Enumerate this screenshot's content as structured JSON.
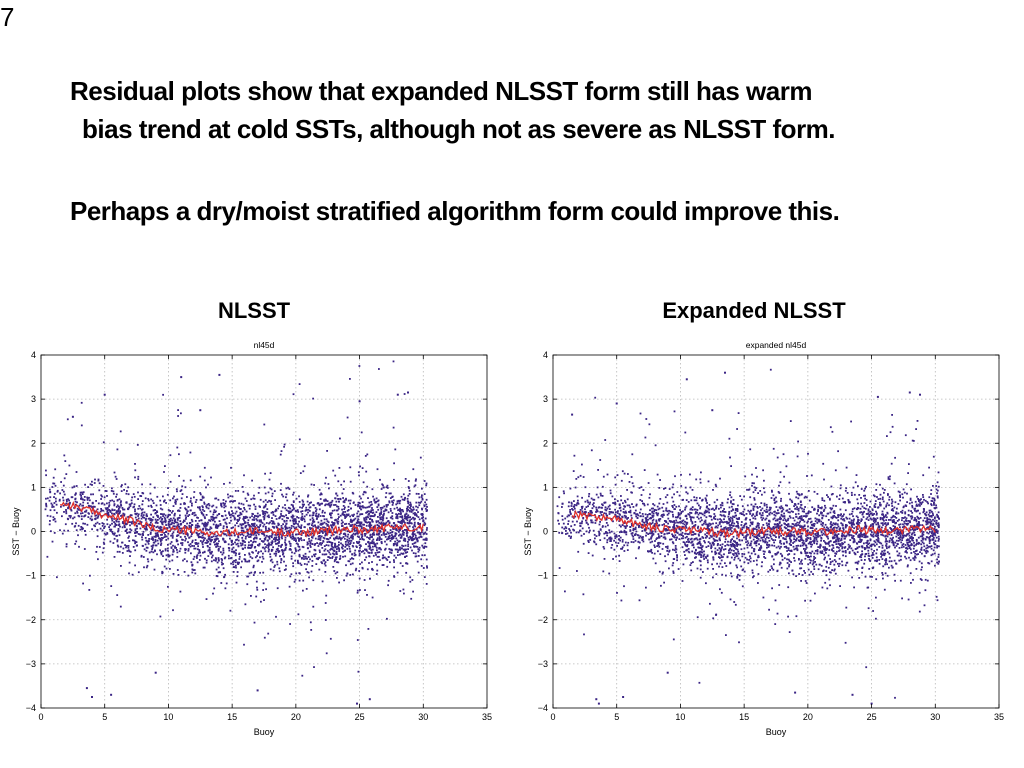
{
  "slide": {
    "number": "7",
    "paragraph1_line1": "Residual plots show that expanded NLSST form still has warm",
    "paragraph1_line2": "bias trend at cold SSTs, although not as severe as NLSST form.",
    "paragraph2": "Perhaps a dry/moist stratified algorithm form could improve this."
  },
  "colors": {
    "points": "#3b2585",
    "trend": "#e0302a",
    "grid": "#b8b8b8",
    "axis": "#000000"
  },
  "chart_data": [
    {
      "type": "scatter",
      "heading": "NLSST",
      "title": "nl45d",
      "xlabel": "Buoy",
      "ylabel": "SST − Buoy",
      "xlim": [
        0,
        35
      ],
      "ylim": [
        -4,
        4
      ],
      "xticks": [
        0,
        5,
        10,
        15,
        20,
        25,
        30,
        35
      ],
      "yticks": [
        -4,
        -3,
        -2,
        -1,
        0,
        1,
        2,
        3,
        4
      ],
      "grid": true,
      "series": [
        {
          "kind": "scatter-density",
          "x_range": [
            0.3,
            30.3
          ],
          "points_per_degree": 120,
          "spread_sd": 0.45,
          "outlier_fraction": 0.08
        },
        {
          "kind": "trend-line",
          "x": [
            1.5,
            3,
            4,
            5,
            6,
            7,
            8,
            9,
            10,
            12,
            14,
            16,
            18,
            20,
            22,
            24,
            26,
            28,
            30
          ],
          "y": [
            0.65,
            0.55,
            0.45,
            0.38,
            0.3,
            0.25,
            0.15,
            0.05,
            0.05,
            0.0,
            -0.05,
            0.0,
            0.0,
            -0.02,
            0.0,
            0.05,
            0.05,
            0.1,
            0.1
          ]
        }
      ],
      "outliers": [
        {
          "x": 2.5,
          "y": 2.6
        },
        {
          "x": 11,
          "y": 3.5
        },
        {
          "x": 14,
          "y": 3.55
        },
        {
          "x": 12.5,
          "y": 2.75
        },
        {
          "x": 28,
          "y": 3.1
        },
        {
          "x": 28.8,
          "y": 3.15
        },
        {
          "x": 25,
          "y": 2.95
        },
        {
          "x": 5,
          "y": 3.1
        },
        {
          "x": 3.6,
          "y": -3.55
        },
        {
          "x": 4,
          "y": -3.75
        },
        {
          "x": 5.5,
          "y": -3.7
        },
        {
          "x": 17,
          "y": -3.6
        },
        {
          "x": 25.8,
          "y": -3.8
        },
        {
          "x": 24.8,
          "y": -3.9
        },
        {
          "x": 9,
          "y": -3.2
        }
      ]
    },
    {
      "type": "scatter",
      "heading": "Expanded NLSST",
      "title": "expanded nl45d",
      "xlabel": "Buoy",
      "ylabel": "SST − Buoy",
      "xlim": [
        0,
        35
      ],
      "ylim": [
        -4,
        4
      ],
      "xticks": [
        0,
        5,
        10,
        15,
        20,
        25,
        30,
        35
      ],
      "yticks": [
        -4,
        -3,
        -2,
        -1,
        0,
        1,
        2,
        3,
        4
      ],
      "grid": true,
      "series": [
        {
          "kind": "scatter-density",
          "x_range": [
            0.3,
            30.3
          ],
          "points_per_degree": 120,
          "spread_sd": 0.45,
          "outlier_fraction": 0.08
        },
        {
          "kind": "trend-line",
          "x": [
            1.5,
            3,
            4,
            5,
            6,
            7,
            8,
            9,
            10,
            12,
            14,
            16,
            18,
            20,
            22,
            24,
            26,
            28,
            30
          ],
          "y": [
            0.4,
            0.35,
            0.3,
            0.28,
            0.2,
            0.15,
            0.1,
            0.05,
            0.05,
            0.0,
            -0.05,
            0.0,
            0.0,
            0.0,
            0.0,
            0.05,
            0.0,
            0.05,
            0.05
          ]
        }
      ],
      "outliers": [
        {
          "x": 1.5,
          "y": 2.65
        },
        {
          "x": 10.5,
          "y": 3.45
        },
        {
          "x": 13.5,
          "y": 3.6
        },
        {
          "x": 12.5,
          "y": 2.75
        },
        {
          "x": 28,
          "y": 3.15
        },
        {
          "x": 28.8,
          "y": 3.1
        },
        {
          "x": 25.5,
          "y": 3.05
        },
        {
          "x": 5,
          "y": 2.9
        },
        {
          "x": 3.4,
          "y": -3.8
        },
        {
          "x": 3.6,
          "y": -3.9
        },
        {
          "x": 5.5,
          "y": -3.75
        },
        {
          "x": 19,
          "y": -3.65
        },
        {
          "x": 25,
          "y": -3.9
        },
        {
          "x": 23.5,
          "y": -3.7
        },
        {
          "x": 9,
          "y": -3.2
        }
      ]
    }
  ]
}
